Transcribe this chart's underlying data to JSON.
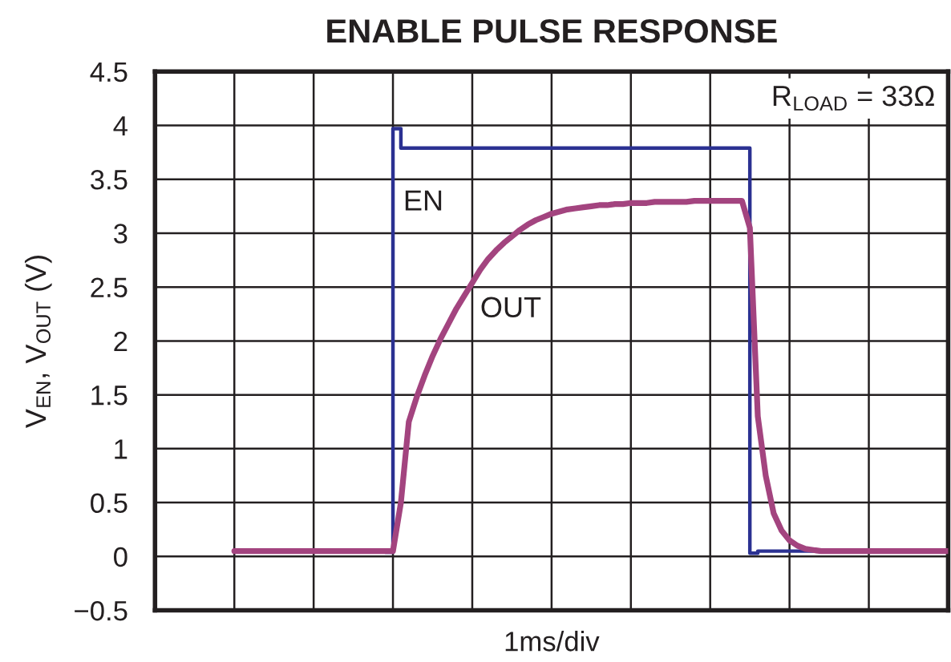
{
  "chart_data": {
    "type": "line",
    "title": "ENABLE PULSE RESPONSE",
    "xlabel": "1ms/div",
    "ylabel": "V$_{EN}$, V$_{OUT}$ (V)",
    "annotations": [
      "R$_{LOAD}$ = 33Ω"
    ],
    "categories": [
      null,
      null,
      null,
      null,
      null,
      null,
      null,
      null,
      null,
      null,
      null,
      null,
      null,
      null,
      null,
      null,
      null,
      null,
      null,
      null,
      null,
      null,
      null,
      null,
      null,
      null,
      null,
      null,
      null,
      null,
      null,
      null,
      null,
      null,
      null,
      null,
      null,
      null,
      null,
      null,
      null,
      null,
      null,
      null,
      null,
      null,
      null,
      null,
      null,
      null,
      null,
      null,
      null,
      null,
      null,
      null,
      null,
      null,
      null,
      null,
      null,
      null,
      null,
      null,
      null,
      null,
      null,
      null,
      null,
      null,
      null,
      null,
      null,
      null,
      null,
      null,
      null,
      null,
      null,
      null,
      null,
      null,
      null,
      null,
      null,
      null,
      null,
      null,
      null,
      null,
      null
    ],
    "series": [
      {
        "name": "EN",
        "type": "step",
        "color": "#2b3192",
        "values": [
          null,
          null,
          null,
          null,
          null,
          null,
          null,
          null,
          null,
          null,
          null,
          null,
          null,
          null,
          null,
          null,
          null,
          null,
          null,
          0.04,
          3.97,
          3.79,
          3.79,
          3.79,
          3.79,
          3.79,
          3.79,
          3.79,
          3.79,
          3.79,
          3.79,
          3.79,
          3.79,
          3.79,
          3.79,
          3.79,
          3.79,
          3.79,
          3.79,
          3.79,
          3.79,
          3.79,
          3.79,
          3.79,
          3.79,
          3.79,
          3.79,
          3.79,
          3.79,
          3.79,
          3.79,
          3.79,
          3.79,
          3.79,
          3.79,
          3.79,
          3.79,
          3.79,
          3.79,
          3.79,
          3.79,
          3.79,
          3.79,
          3.79,
          3.79,
          0.03,
          0.05,
          0.05,
          0.05,
          0.05,
          0.05,
          0.05,
          0.05,
          0.05,
          0.05,
          null,
          null,
          null,
          null,
          null,
          null,
          null,
          null,
          null,
          null,
          null,
          null,
          null,
          null,
          null,
          null
        ]
      },
      {
        "name": "OUT",
        "color": "#a3447f",
        "values": [
          0.05,
          0.05,
          0.05,
          0.05,
          0.05,
          0.05,
          0.05,
          0.05,
          0.05,
          0.05,
          0.05,
          0.05,
          0.05,
          0.05,
          0.05,
          0.05,
          0.05,
          0.05,
          0.05,
          0.05,
          0.05,
          0.5,
          1.25,
          1.48,
          1.68,
          1.86,
          2.02,
          2.16,
          2.3,
          2.42,
          2.54,
          2.66,
          2.76,
          2.84,
          2.91,
          2.97,
          3.03,
          3.08,
          3.12,
          3.15,
          3.18,
          3.2,
          3.22,
          3.23,
          3.24,
          3.25,
          3.26,
          3.26,
          3.27,
          3.27,
          3.28,
          3.28,
          3.28,
          3.29,
          3.29,
          3.29,
          3.29,
          3.29,
          3.3,
          3.3,
          3.3,
          3.3,
          3.3,
          3.3,
          3.3,
          3.05,
          1.3,
          0.75,
          0.4,
          0.24,
          0.15,
          0.1,
          0.07,
          0.06,
          0.05,
          0.05,
          0.05,
          0.05,
          0.05,
          0.05,
          0.05,
          0.05,
          0.05,
          0.05,
          0.05,
          0.05,
          0.05,
          0.05,
          0.05,
          0.05,
          0.05
        ]
      }
    ],
    "ylim": [
      -0.5,
      4.5
    ],
    "yticks": [
      {
        "value": -0.5,
        "label": "−0.5"
      },
      0,
      0.5,
      1,
      1.5,
      2,
      2.5,
      3,
      3.5,
      4,
      4.5
    ],
    "grid": true
  }
}
